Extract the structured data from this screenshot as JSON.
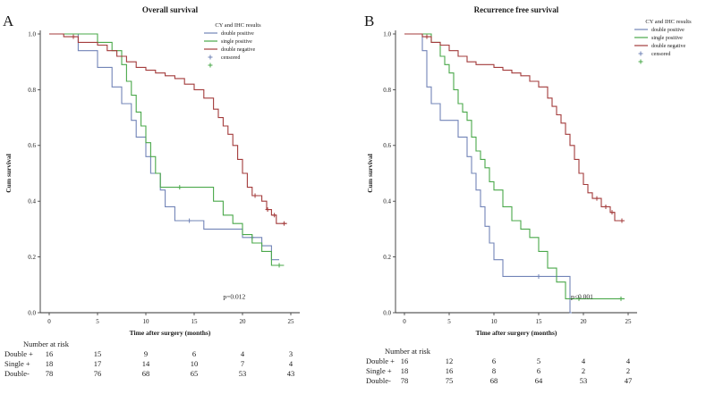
{
  "chart_data": [
    {
      "type": "line",
      "subtype": "kaplan-meier-step",
      "panel_label": "A",
      "title": "Overall survival",
      "xlabel": "Time after surgery (months)",
      "ylabel": "Cum survival",
      "xlim": [
        0,
        25
      ],
      "ylim": [
        0.0,
        1.0
      ],
      "xticks": [
        0,
        5,
        10,
        15,
        20,
        25
      ],
      "yticks": [
        "0.0",
        "0.2",
        "0.4",
        "0.6",
        "0.8",
        "1.0"
      ],
      "grid": false,
      "p_value": "p=0.012",
      "legend": {
        "title": "CY and IHC results",
        "position": "top-right-inside",
        "entries": [
          {
            "label": "double positive",
            "color": "#7284b7",
            "marker": "line"
          },
          {
            "label": "single positive",
            "color": "#4aa84a",
            "marker": "line"
          },
          {
            "label": "double negative",
            "color": "#a33b3b",
            "marker": "line"
          },
          {
            "label": "censored",
            "color": "#7284b7",
            "marker": "plus"
          },
          {
            "label": "",
            "color": "#4aa84a",
            "marker": "plus"
          }
        ]
      },
      "series": [
        {
          "name": "double positive",
          "color": "#7284b7",
          "points": [
            [
              0,
              1.0
            ],
            [
              3,
              0.94
            ],
            [
              5,
              0.88
            ],
            [
              6.5,
              0.81
            ],
            [
              7.5,
              0.75
            ],
            [
              8.5,
              0.69
            ],
            [
              9,
              0.63
            ],
            [
              10,
              0.56
            ],
            [
              10.5,
              0.5
            ],
            [
              11.5,
              0.44
            ],
            [
              12,
              0.38
            ],
            [
              13,
              0.33
            ],
            [
              16,
              0.3
            ],
            [
              20,
              0.27
            ],
            [
              22,
              0.24
            ],
            [
              23,
              0.19
            ]
          ],
          "end_x": 23.8,
          "censored_x": [
            14.5,
            21
          ]
        },
        {
          "name": "single positive",
          "color": "#4aa84a",
          "points": [
            [
              0,
              1.0
            ],
            [
              5,
              0.97
            ],
            [
              6.5,
              0.94
            ],
            [
              7.5,
              0.89
            ],
            [
              8,
              0.83
            ],
            [
              8.5,
              0.78
            ],
            [
              9,
              0.72
            ],
            [
              9.5,
              0.67
            ],
            [
              10,
              0.61
            ],
            [
              10.5,
              0.56
            ],
            [
              11,
              0.5
            ],
            [
              11.5,
              0.45
            ],
            [
              17,
              0.4
            ],
            [
              18,
              0.35
            ],
            [
              19,
              0.32
            ],
            [
              20,
              0.28
            ],
            [
              21,
              0.25
            ],
            [
              22,
              0.22
            ],
            [
              23,
              0.17
            ]
          ],
          "end_x": 24.3,
          "censored_x": [
            13.5,
            23.8
          ]
        },
        {
          "name": "double negative",
          "color": "#a33b3b",
          "points": [
            [
              0,
              1.0
            ],
            [
              1.5,
              0.99
            ],
            [
              3,
              0.97
            ],
            [
              5,
              0.96
            ],
            [
              6,
              0.94
            ],
            [
              7,
              0.92
            ],
            [
              8,
              0.9
            ],
            [
              9,
              0.88
            ],
            [
              10,
              0.87
            ],
            [
              11,
              0.86
            ],
            [
              12,
              0.85
            ],
            [
              13,
              0.84
            ],
            [
              14,
              0.82
            ],
            [
              15,
              0.8
            ],
            [
              16,
              0.77
            ],
            [
              17,
              0.73
            ],
            [
              17.5,
              0.7
            ],
            [
              18,
              0.67
            ],
            [
              18.5,
              0.64
            ],
            [
              19,
              0.6
            ],
            [
              19.5,
              0.55
            ],
            [
              20,
              0.5
            ],
            [
              20.5,
              0.45
            ],
            [
              21,
              0.42
            ],
            [
              22,
              0.4
            ],
            [
              22.5,
              0.37
            ],
            [
              23,
              0.35
            ],
            [
              23.5,
              0.32
            ]
          ],
          "end_x": 24.6,
          "censored_x": [
            2.5,
            21.3,
            22.6,
            23.3,
            24.3
          ]
        }
      ],
      "risk_table": {
        "header": "Number at risk",
        "time_points": [
          0,
          5,
          10,
          15,
          20,
          25
        ],
        "rows": [
          {
            "label": "Double +",
            "values": [
              16,
              15,
              9,
              6,
              4,
              3
            ]
          },
          {
            "label": "Single +",
            "values": [
              18,
              17,
              14,
              10,
              7,
              4
            ]
          },
          {
            "label": "Double-",
            "values": [
              78,
              76,
              68,
              65,
              53,
              43
            ]
          }
        ]
      }
    },
    {
      "type": "line",
      "subtype": "kaplan-meier-step",
      "panel_label": "B",
      "title": "Recurrence free survival",
      "xlabel": "Time after surgery (months)",
      "ylabel": "Cum survival",
      "xlim": [
        0,
        25
      ],
      "ylim": [
        0.0,
        1.0
      ],
      "xticks": [
        0,
        5,
        10,
        15,
        20,
        25
      ],
      "yticks": [
        "0.0",
        "0.2",
        "0.4",
        "0.6",
        "0.8",
        "1.0"
      ],
      "grid": false,
      "p_value": "p<0.001",
      "legend": {
        "title": "CY and IHC results",
        "position": "right-outside",
        "entries": [
          {
            "label": "double positive",
            "color": "#7284b7",
            "marker": "line"
          },
          {
            "label": "single positive",
            "color": "#4aa84a",
            "marker": "line"
          },
          {
            "label": "double negative",
            "color": "#a33b3b",
            "marker": "line"
          },
          {
            "label": "censored",
            "color": "#7284b7",
            "marker": "plus"
          },
          {
            "label": "",
            "color": "#4aa84a",
            "marker": "plus"
          }
        ]
      },
      "series": [
        {
          "name": "double positive",
          "color": "#7284b7",
          "points": [
            [
              0,
              1.0
            ],
            [
              2,
              0.94
            ],
            [
              2.5,
              0.81
            ],
            [
              3,
              0.75
            ],
            [
              4,
              0.69
            ],
            [
              6,
              0.63
            ],
            [
              7,
              0.56
            ],
            [
              7.5,
              0.5
            ],
            [
              8,
              0.44
            ],
            [
              8.5,
              0.38
            ],
            [
              9,
              0.31
            ],
            [
              9.5,
              0.25
            ],
            [
              10,
              0.19
            ],
            [
              11,
              0.13
            ],
            [
              18.5,
              0.0
            ]
          ],
          "end_x": 18.7,
          "censored_x": [
            15
          ]
        },
        {
          "name": "single positive",
          "color": "#4aa84a",
          "points": [
            [
              0,
              1.0
            ],
            [
              3,
              0.97
            ],
            [
              4,
              0.92
            ],
            [
              4.5,
              0.89
            ],
            [
              5,
              0.86
            ],
            [
              5.5,
              0.8
            ],
            [
              6,
              0.75
            ],
            [
              6.5,
              0.72
            ],
            [
              7,
              0.69
            ],
            [
              7.5,
              0.63
            ],
            [
              8,
              0.58
            ],
            [
              8.5,
              0.55
            ],
            [
              9,
              0.52
            ],
            [
              9.5,
              0.47
            ],
            [
              10,
              0.44
            ],
            [
              11,
              0.38
            ],
            [
              12,
              0.33
            ],
            [
              13,
              0.3
            ],
            [
              14,
              0.27
            ],
            [
              15,
              0.22
            ],
            [
              16,
              0.16
            ],
            [
              17,
              0.11
            ],
            [
              18,
              0.05
            ]
          ],
          "end_x": 24.6,
          "censored_x": [
            19.5,
            24.2
          ]
        },
        {
          "name": "double negative",
          "color": "#a33b3b",
          "points": [
            [
              0,
              1.0
            ],
            [
              2,
              0.99
            ],
            [
              3,
              0.97
            ],
            [
              4,
              0.96
            ],
            [
              5,
              0.94
            ],
            [
              6,
              0.92
            ],
            [
              7,
              0.9
            ],
            [
              8,
              0.89
            ],
            [
              10,
              0.88
            ],
            [
              11,
              0.87
            ],
            [
              12,
              0.86
            ],
            [
              13,
              0.85
            ],
            [
              14,
              0.83
            ],
            [
              15,
              0.81
            ],
            [
              16,
              0.77
            ],
            [
              16.5,
              0.74
            ],
            [
              17,
              0.71
            ],
            [
              17.5,
              0.68
            ],
            [
              18,
              0.64
            ],
            [
              18.5,
              0.6
            ],
            [
              19,
              0.55
            ],
            [
              19.5,
              0.5
            ],
            [
              20,
              0.46
            ],
            [
              20.5,
              0.43
            ],
            [
              21,
              0.41
            ],
            [
              22,
              0.38
            ],
            [
              23,
              0.36
            ],
            [
              23.5,
              0.33
            ]
          ],
          "end_x": 24.6,
          "censored_x": [
            2.5,
            21.5,
            22.5,
            23.2,
            24.3
          ]
        }
      ],
      "risk_table": {
        "header": "Number at risk",
        "time_points": [
          0,
          5,
          10,
          15,
          20,
          25
        ],
        "rows": [
          {
            "label": "Double +",
            "values": [
              16,
              12,
              6,
              5,
              4,
              4
            ]
          },
          {
            "label": "Single +",
            "values": [
              18,
              16,
              8,
              6,
              2,
              2
            ]
          },
          {
            "label": "Double-",
            "values": [
              78,
              75,
              68,
              64,
              53,
              47
            ]
          }
        ]
      }
    }
  ]
}
